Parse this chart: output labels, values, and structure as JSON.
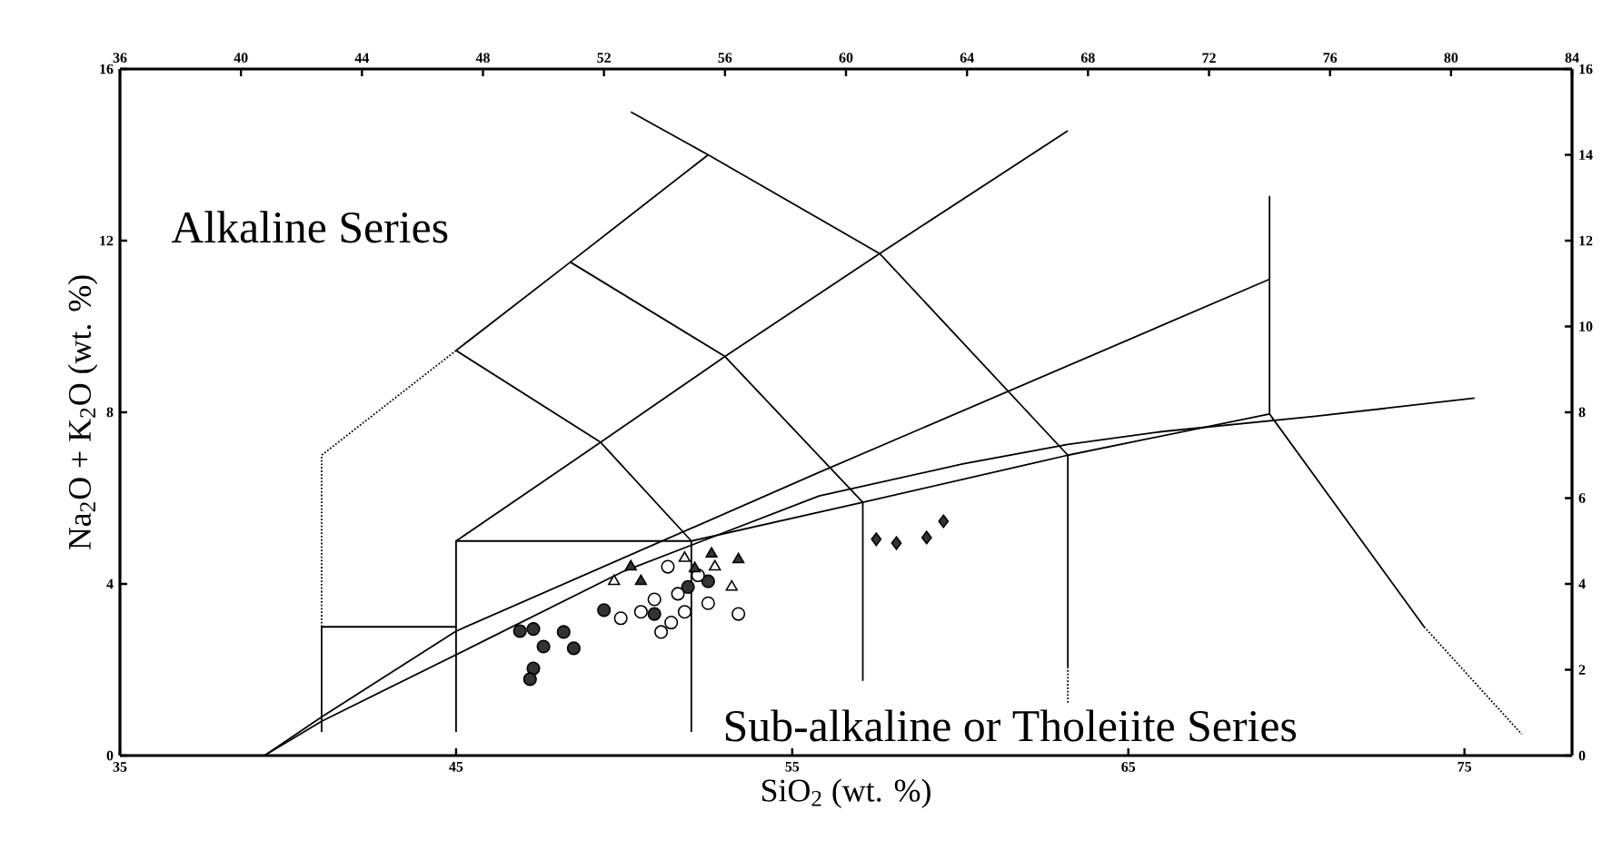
{
  "chart_data": {
    "type": "scatter",
    "xlabel": "SiO$_{2}$ (wt. %)",
    "ylabel": "Na$_{2}$O + K$_{2}$O (wt. %)",
    "annotations": [
      "Alkaline Series",
      "Sub-alkaline or Tholeiite Series"
    ],
    "xlim": [
      35,
      78.2
    ],
    "ylim": [
      0,
      16
    ],
    "xticks": [
      35,
      45,
      55,
      65,
      75
    ],
    "yticks": [
      0,
      4,
      8,
      12,
      16
    ],
    "x2lim": [
      36,
      84
    ],
    "x2ticks": [
      36,
      40,
      44,
      48,
      52,
      56,
      60,
      64,
      68,
      72,
      76,
      80,
      84
    ],
    "y2lim": [
      0,
      16
    ],
    "y2ticks": [
      0,
      2,
      4,
      6,
      8,
      10,
      12,
      14,
      16
    ],
    "series": [
      {
        "type": "line",
        "color": "#000000",
        "line_style": "solid",
        "x": [
          41,
          41,
          45
        ],
        "values": [
          0.55,
          3,
          3
        ]
      },
      {
        "type": "line",
        "color": "#000000",
        "line_style": "dotted",
        "x": [
          41,
          41,
          45
        ],
        "values": [
          3,
          7,
          9.44
        ]
      },
      {
        "type": "line",
        "color": "#000000",
        "line_style": "solid",
        "x": [
          45,
          45,
          52,
          52
        ],
        "values": [
          0.55,
          5,
          5,
          0.55
        ]
      },
      {
        "type": "line",
        "color": "#000000",
        "line_style": "solid",
        "x": [
          45,
          49.3,
          53,
          57.6,
          63.2
        ],
        "values": [
          5,
          7.3,
          9.3,
          11.7,
          14.56
        ]
      },
      {
        "type": "line",
        "color": "#000000",
        "line_style": "solid",
        "x": [
          45,
          48.4,
          52.5
        ],
        "values": [
          9.44,
          11.5,
          14.0
        ]
      },
      {
        "type": "line",
        "color": "#000000",
        "line_style": "solid",
        "x": [
          45,
          49.3,
          52
        ],
        "values": [
          9.44,
          7.3,
          5
        ]
      },
      {
        "type": "line",
        "color": "#000000",
        "line_style": "solid",
        "x": [
          48.4,
          53,
          57.1
        ],
        "values": [
          11.5,
          9.3,
          5.9
        ]
      },
      {
        "type": "line",
        "color": "#000000",
        "line_style": "solid",
        "x": [
          50.2,
          52.5,
          57.6,
          63.2
        ],
        "values": [
          15.0,
          14.0,
          11.7,
          7.0
        ]
      },
      {
        "type": "line",
        "color": "#000000",
        "line_style": "solid",
        "x": [
          52,
          57.1,
          63.2,
          69.2,
          73.8
        ],
        "values": [
          5,
          5.9,
          7.0,
          7.96,
          3.0
        ]
      },
      {
        "type": "line",
        "color": "#000000",
        "line_style": "dotted",
        "x": [
          73.8,
          76.7
        ],
        "values": [
          3.0,
          0.5
        ]
      },
      {
        "type": "line",
        "color": "#000000",
        "line_style": "solid",
        "x": [
          57.1,
          57.1
        ],
        "values": [
          5.9,
          1.74
        ]
      },
      {
        "type": "line",
        "color": "#000000",
        "line_style": "solid",
        "x": [
          63.2,
          63.2
        ],
        "values": [
          7.0,
          2.07
        ]
      },
      {
        "type": "line",
        "color": "#000000",
        "line_style": "dotted",
        "x": [
          63.2,
          63.2
        ],
        "values": [
          2.07,
          1.2
        ]
      },
      {
        "type": "line",
        "color": "#000000",
        "line_style": "solid",
        "x": [
          69.2,
          69.2
        ],
        "values": [
          7.96,
          13.04
        ]
      },
      {
        "type": "line",
        "color": "#000000",
        "line_style": "solid",
        "x": [
          39.3,
          41,
          45,
          55.8,
          69.2
        ],
        "values": [
          0,
          0.9,
          2.9,
          6.6,
          11.1
        ]
      },
      {
        "type": "line",
        "color": "#000000",
        "line_style": "solid",
        "x": [
          39.3,
          41,
          45.9,
          50,
          55.8,
          60.1,
          63.2,
          66,
          70.5,
          75.3
        ],
        "values": [
          0,
          0.8,
          2.7,
          4.3,
          6.05,
          6.8,
          7.25,
          7.55,
          7.9,
          8.33
        ]
      },
      {
        "marker": "circle",
        "color": "#333333",
        "x": [
          46.9,
          47.3,
          47.6,
          48.2,
          48.5,
          47.3,
          47.2,
          49.4,
          50.9,
          51.9,
          52.5
        ],
        "values": [
          2.9,
          2.95,
          2.54,
          2.88,
          2.5,
          2.03,
          1.78,
          3.39,
          3.3,
          3.93,
          4.06
        ]
      },
      {
        "marker": "circle",
        "color": "#ffffff",
        "x": [
          51.1,
          51.4,
          49.9,
          51.3,
          52.5,
          53.4,
          51.8,
          50.9,
          51.6,
          52.2,
          50.5
        ],
        "values": [
          2.88,
          3.1,
          3.2,
          4.4,
          3.55,
          3.3,
          3.35,
          3.64,
          3.77,
          4.2,
          3.35
        ]
      },
      {
        "marker": "triangle",
        "color": "#333333",
        "x": [
          50.2,
          52.6,
          53.4,
          52.1,
          50.5
        ],
        "values": [
          4.4,
          4.7,
          4.57,
          4.36,
          4.06
        ]
      },
      {
        "marker": "triangle",
        "color": "#ffffff",
        "x": [
          49.7,
          51.8,
          53.2,
          52.7
        ],
        "values": [
          4.06,
          4.6,
          3.93,
          4.4
        ]
      },
      {
        "marker": "diamond",
        "color": "#333333",
        "x": [
          57.5,
          58.1,
          59.0,
          59.5
        ],
        "values": [
          5.04,
          4.95,
          5.08,
          5.46
        ]
      }
    ]
  }
}
